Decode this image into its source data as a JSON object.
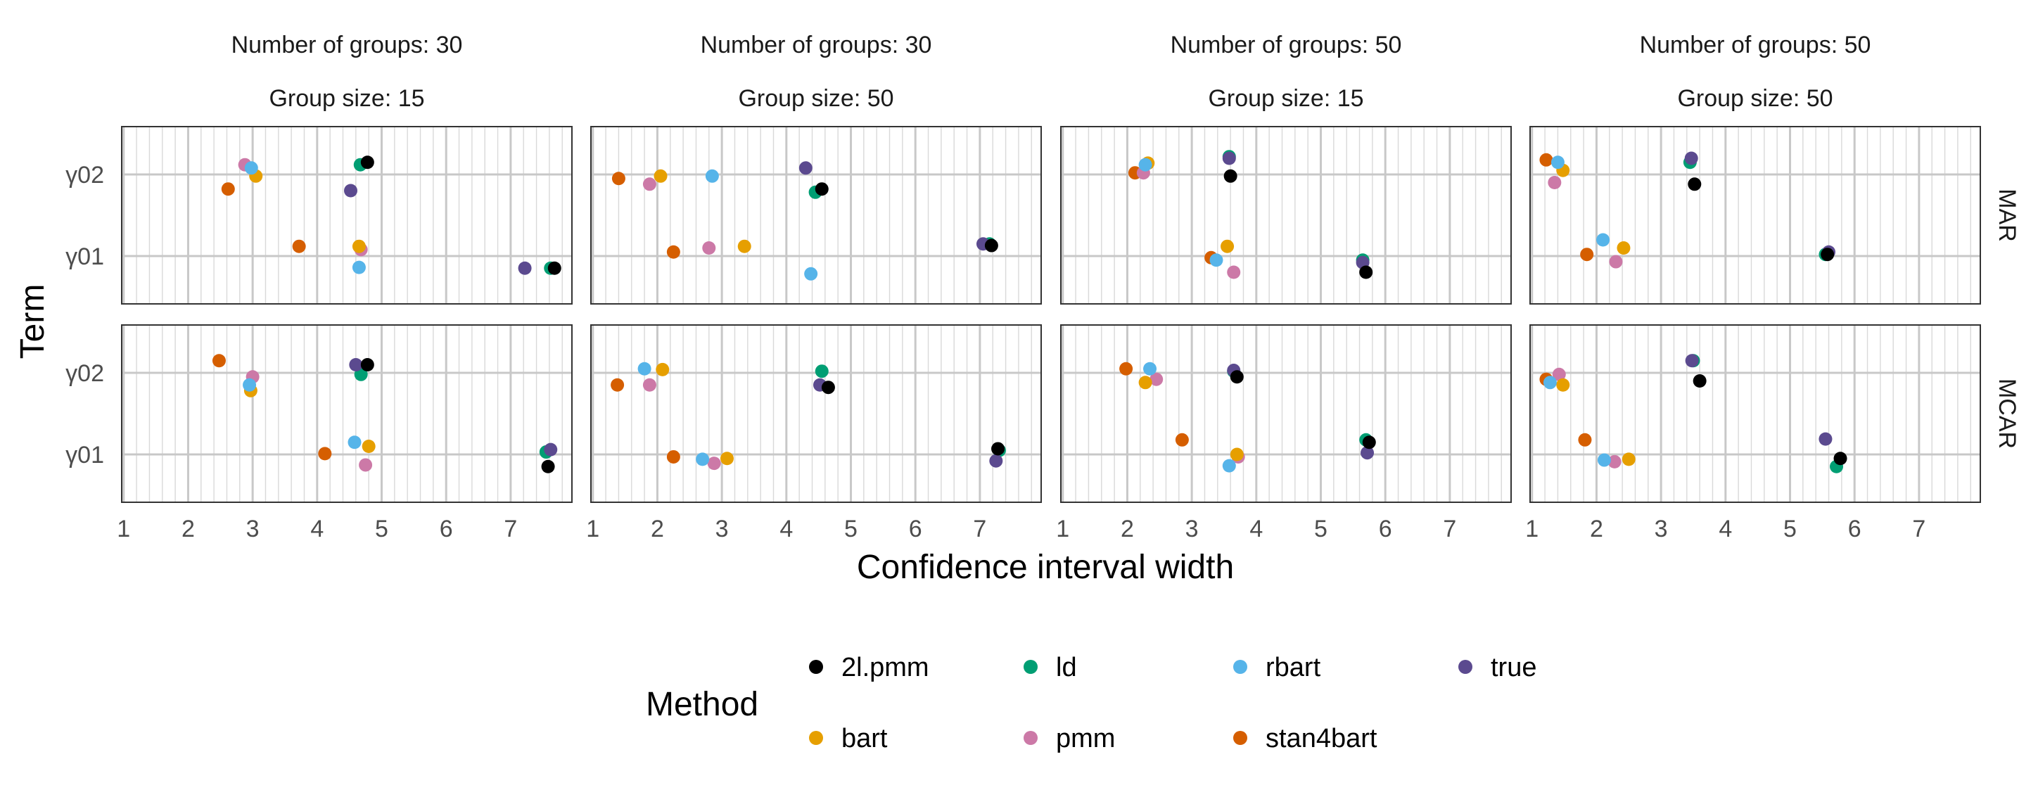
{
  "chart_data": {
    "type": "scatter",
    "xlabel": "Confidence interval width",
    "ylabel": "Term",
    "xlim": [
      0.97,
      7.95
    ],
    "x_ticks": [
      1,
      2,
      3,
      4,
      5,
      6,
      7
    ],
    "x_tick_labels": [
      "1",
      "2",
      "3",
      "4",
      "5",
      "6",
      "7"
    ],
    "y_categories": [
      "γ01",
      "γ02"
    ],
    "grid": true,
    "columns": [
      {
        "line1": "Number of groups: 30",
        "line2": "Group size: 15"
      },
      {
        "line1": "Number of groups: 30",
        "line2": "Group size: 50"
      },
      {
        "line1": "Number of groups: 50",
        "line2": "Group size: 15"
      },
      {
        "line1": "Number of groups: 50",
        "line2": "Group size: 50"
      }
    ],
    "rows": [
      "MAR",
      "MCAR"
    ],
    "legend": {
      "title": "Method",
      "placement": "bottom",
      "entries": [
        {
          "name": "2l.pmm",
          "color": "#000000"
        },
        {
          "name": "ld",
          "color": "#009E73"
        },
        {
          "name": "rbart",
          "color": "#56B4E9"
        },
        {
          "name": "true",
          "color": "#5B4A8F"
        },
        {
          "name": "bart",
          "color": "#E69F00"
        },
        {
          "name": "pmm",
          "color": "#CC79A7"
        },
        {
          "name": "stan4bart",
          "color": "#D55E00"
        }
      ]
    },
    "panels": [
      {
        "row": "MAR",
        "col": 0,
        "points": {
          "2l.pmm": {
            "γ02": [
              4.78,
              0.15
            ],
            "γ01": [
              7.68,
              -0.15
            ]
          },
          "ld": {
            "γ02": [
              4.67,
              0.12
            ],
            "γ01": [
              7.62,
              -0.15
            ]
          },
          "rbart": {
            "γ02": [
              2.98,
              0.08
            ],
            "γ01": [
              4.65,
              -0.14
            ]
          },
          "true": {
            "γ02": [
              4.52,
              -0.2
            ],
            "γ01": [
              7.22,
              -0.15
            ]
          },
          "bart": {
            "γ02": [
              3.05,
              -0.02
            ],
            "γ01": [
              4.65,
              0.12
            ]
          },
          "pmm": {
            "γ02": [
              2.88,
              0.12
            ],
            "γ01": [
              4.68,
              0.08
            ]
          },
          "stan4bart": {
            "γ02": [
              2.62,
              -0.18
            ],
            "γ01": [
              3.72,
              0.12
            ]
          }
        }
      },
      {
        "row": "MAR",
        "col": 1,
        "points": {
          "2l.pmm": {
            "γ02": [
              4.55,
              -0.18
            ],
            "γ01": [
              7.18,
              0.13
            ]
          },
          "ld": {
            "γ02": [
              4.45,
              -0.22
            ],
            "γ01": [
              7.15,
              0.15
            ]
          },
          "rbart": {
            "γ02": [
              2.85,
              -0.02
            ],
            "γ01": [
              4.38,
              -0.22
            ]
          },
          "true": {
            "γ02": [
              4.3,
              0.08
            ],
            "γ01": [
              7.05,
              0.15
            ]
          },
          "bart": {
            "γ02": [
              2.05,
              -0.02
            ],
            "γ01": [
              3.35,
              0.12
            ]
          },
          "pmm": {
            "γ02": [
              1.88,
              -0.12
            ],
            "γ01": [
              2.8,
              0.1
            ]
          },
          "stan4bart": {
            "γ02": [
              1.4,
              -0.05
            ],
            "γ01": [
              2.25,
              0.05
            ]
          }
        }
      },
      {
        "row": "MAR",
        "col": 2,
        "points": {
          "2l.pmm": {
            "γ02": [
              3.6,
              -0.02
            ],
            "γ01": [
              5.7,
              -0.2
            ]
          },
          "ld": {
            "γ02": [
              3.58,
              0.22
            ],
            "γ01": [
              5.65,
              -0.05
            ]
          },
          "rbart": {
            "γ02": [
              2.28,
              0.12
            ],
            "γ01": [
              3.38,
              -0.05
            ]
          },
          "true": {
            "γ02": [
              3.58,
              0.2
            ],
            "γ01": [
              5.65,
              -0.08
            ]
          },
          "bart": {
            "γ02": [
              2.32,
              0.14
            ],
            "γ01": [
              3.55,
              0.12
            ]
          },
          "pmm": {
            "γ02": [
              2.25,
              0.02
            ],
            "γ01": [
              3.65,
              -0.2
            ]
          },
          "stan4bart": {
            "γ02": [
              2.12,
              0.02
            ],
            "γ01": [
              3.3,
              -0.02
            ]
          }
        }
      },
      {
        "row": "MAR",
        "col": 3,
        "points": {
          "2l.pmm": {
            "γ02": [
              3.52,
              -0.12
            ],
            "γ01": [
              5.58,
              0.02
            ]
          },
          "ld": {
            "γ02": [
              3.45,
              0.15
            ],
            "γ01": [
              5.55,
              0.02
            ]
          },
          "rbart": {
            "γ02": [
              1.4,
              0.15
            ],
            "γ01": [
              2.1,
              0.2
            ]
          },
          "true": {
            "γ02": [
              3.47,
              0.2
            ],
            "γ01": [
              5.6,
              0.05
            ]
          },
          "bart": {
            "γ02": [
              1.48,
              0.05
            ],
            "γ01": [
              2.42,
              0.1
            ]
          },
          "pmm": {
            "γ02": [
              1.35,
              -0.1
            ],
            "γ01": [
              2.3,
              -0.07
            ]
          },
          "stan4bart": {
            "γ02": [
              1.22,
              0.18
            ],
            "γ01": [
              1.85,
              0.02
            ]
          }
        }
      },
      {
        "row": "MCAR",
        "col": 0,
        "points": {
          "2l.pmm": {
            "γ02": [
              4.78,
              0.1
            ],
            "γ01": [
              7.58,
              -0.15
            ]
          },
          "ld": {
            "γ02": [
              4.68,
              -0.02
            ],
            "γ01": [
              7.55,
              0.03
            ]
          },
          "rbart": {
            "γ02": [
              2.95,
              -0.15
            ],
            "γ01": [
              4.58,
              0.15
            ]
          },
          "true": {
            "γ02": [
              4.6,
              0.1
            ],
            "γ01": [
              7.62,
              0.06
            ]
          },
          "bart": {
            "γ02": [
              2.97,
              -0.22
            ],
            "γ01": [
              4.8,
              0.1
            ]
          },
          "pmm": {
            "γ02": [
              3.0,
              -0.05
            ],
            "γ01": [
              4.75,
              -0.13
            ]
          },
          "stan4bart": {
            "γ02": [
              2.48,
              0.15
            ],
            "γ01": [
              4.12,
              0.01
            ]
          }
        }
      },
      {
        "row": "MCAR",
        "col": 1,
        "points": {
          "2l.pmm": {
            "γ02": [
              4.65,
              -0.18
            ],
            "γ01": [
              7.28,
              0.07
            ]
          },
          "ld": {
            "γ02": [
              4.55,
              0.02
            ],
            "γ01": [
              7.3,
              0.05
            ]
          },
          "rbart": {
            "γ02": [
              1.8,
              0.05
            ],
            "γ01": [
              2.7,
              -0.06
            ]
          },
          "true": {
            "γ02": [
              4.52,
              -0.15
            ],
            "γ01": [
              7.25,
              -0.08
            ]
          },
          "bart": {
            "γ02": [
              2.08,
              0.04
            ],
            "γ01": [
              3.08,
              -0.05
            ]
          },
          "pmm": {
            "γ02": [
              1.88,
              -0.15
            ],
            "γ01": [
              2.88,
              -0.11
            ]
          },
          "stan4bart": {
            "γ02": [
              1.38,
              -0.15
            ],
            "γ01": [
              2.25,
              -0.03
            ]
          }
        }
      },
      {
        "row": "MCAR",
        "col": 2,
        "points": {
          "2l.pmm": {
            "γ02": [
              3.7,
              -0.05
            ],
            "γ01": [
              5.75,
              0.15
            ]
          },
          "ld": {
            "γ02": [
              3.65,
              0.02
            ],
            "γ01": [
              5.7,
              0.18
            ]
          },
          "rbart": {
            "γ02": [
              2.35,
              0.05
            ],
            "γ01": [
              3.58,
              -0.14
            ]
          },
          "true": {
            "γ02": [
              3.65,
              0.03
            ],
            "γ01": [
              5.72,
              0.02
            ]
          },
          "bart": {
            "γ02": [
              2.28,
              -0.12
            ],
            "γ01": [
              3.7,
              0.0
            ]
          },
          "pmm": {
            "γ02": [
              2.45,
              -0.08
            ],
            "γ01": [
              3.72,
              -0.03
            ]
          },
          "stan4bart": {
            "γ02": [
              1.98,
              0.05
            ],
            "γ01": [
              2.85,
              0.18
            ]
          }
        }
      },
      {
        "row": "MCAR",
        "col": 3,
        "points": {
          "2l.pmm": {
            "γ02": [
              3.6,
              -0.1
            ],
            "γ01": [
              5.78,
              -0.05
            ]
          },
          "ld": {
            "γ02": [
              3.5,
              0.15
            ],
            "γ01": [
              5.72,
              -0.15
            ]
          },
          "rbart": {
            "γ02": [
              1.28,
              -0.12
            ],
            "γ01": [
              2.12,
              -0.07
            ]
          },
          "true": {
            "γ02": [
              3.48,
              0.15
            ],
            "γ01": [
              5.55,
              0.19
            ]
          },
          "bart": {
            "γ02": [
              1.48,
              -0.15
            ],
            "γ01": [
              2.5,
              -0.06
            ]
          },
          "pmm": {
            "γ02": [
              1.42,
              -0.02
            ],
            "γ01": [
              2.28,
              -0.09
            ]
          },
          "stan4bart": {
            "γ02": [
              1.22,
              -0.08
            ],
            "γ01": [
              1.82,
              0.18
            ]
          }
        }
      }
    ]
  }
}
